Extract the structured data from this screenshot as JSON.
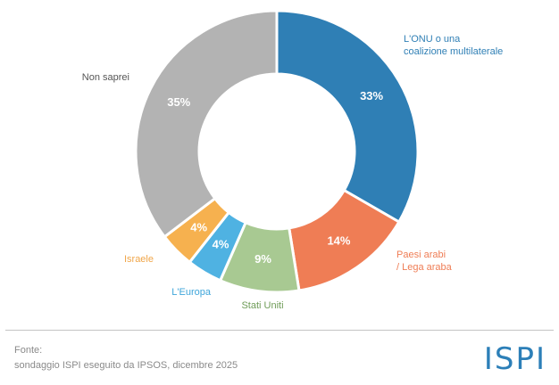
{
  "chart_data": {
    "type": "pie",
    "categories": [
      "L'ONU o una coalizione multilaterale",
      "Paesi arabi / Lega araba",
      "Stati Uniti",
      "L'Europa",
      "Israele",
      "Non saprei"
    ],
    "values": [
      33,
      14,
      9,
      4,
      4,
      35
    ],
    "value_labels": [
      "33%",
      "14%",
      "9%",
      "4%",
      "4%",
      "35%"
    ],
    "category_labels": [
      [
        "L'ONU o una",
        "coalizione multilaterale"
      ],
      [
        "Paesi arabi",
        "/ Lega araba"
      ],
      [
        "Stati Uniti"
      ],
      [
        "L'Europa"
      ],
      [
        "Israele"
      ],
      [
        "Non saprei"
      ]
    ],
    "colors": [
      "#2f7fb5",
      "#ef7d55",
      "#a8c992",
      "#4fb2e2",
      "#f6b14f",
      "#b3b3b3"
    ],
    "label_colors": [
      "#2f7fb5",
      "#ef7d55",
      "#6f9c58",
      "#3ea5da",
      "#f0a64a",
      "#555555"
    ],
    "donut": true,
    "legend": "none"
  },
  "footer": {
    "source_title": "Fonte:",
    "source_text": "sondaggio ISPI eseguito da IPSOS, dicembre 2025",
    "logo": "ISPI"
  }
}
